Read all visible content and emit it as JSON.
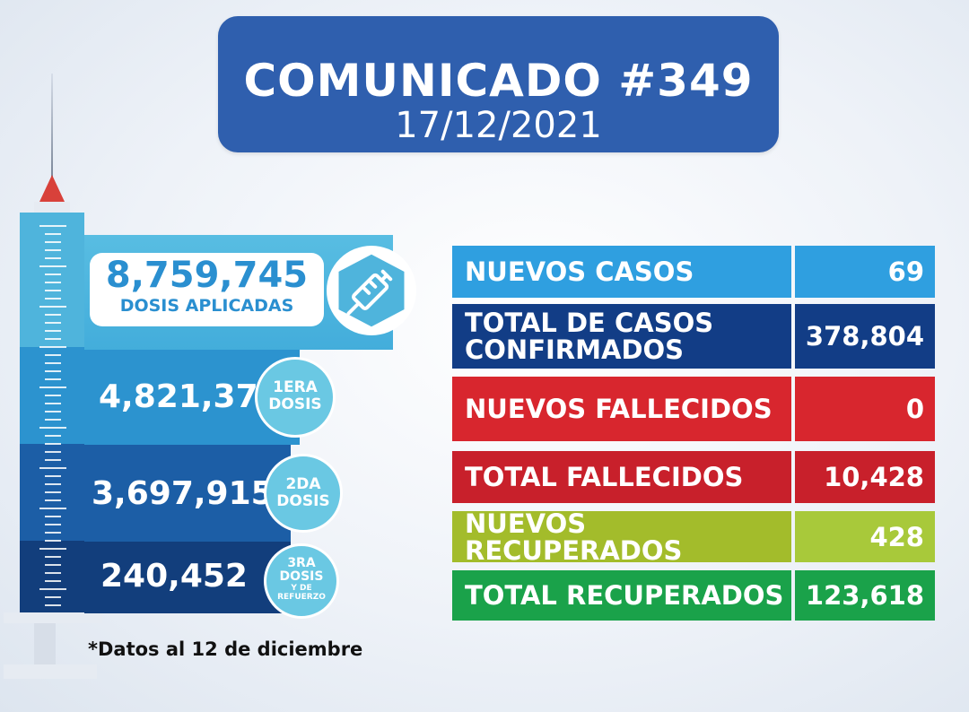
{
  "header": {
    "title": "COMUNICADO #349",
    "date": "17/12/2021"
  },
  "vaccination": {
    "total": {
      "value": "8,759,745",
      "label": "DOSIS APLICADAS",
      "icon": "syringe-icon"
    },
    "doses": [
      {
        "value": "4,821,378",
        "badge_line1": "1ERA",
        "badge_line2": "DOSIS",
        "badge_line3": ""
      },
      {
        "value": "3,697,915",
        "badge_line1": "2DA",
        "badge_line2": "DOSIS",
        "badge_line3": ""
      },
      {
        "value": "240,452",
        "badge_line1": "3RA",
        "badge_line2": "DOSIS",
        "badge_line3": "Y DE REFUERZO"
      }
    ],
    "footnote": "*Datos al 12 de diciembre"
  },
  "stats": [
    {
      "label": "NUEVOS CASOS",
      "value": "69",
      "color": "#2f9fe0",
      "val_color": "#2f9fe0"
    },
    {
      "label": "TOTAL DE CASOS CONFIRMADOS",
      "value": "378,804",
      "color": "#123d86",
      "val_color": "#123d86"
    },
    {
      "label": "NUEVOS FALLECIDOS",
      "value": "0",
      "color": "#d8262e",
      "val_color": "#d8262e"
    },
    {
      "label": "TOTAL FALLECIDOS",
      "value": "10,428",
      "color": "#c8202b",
      "val_color": "#c8202b"
    },
    {
      "label": "NUEVOS RECUPERADOS",
      "value": "428",
      "color": "#a3bc2b",
      "val_color": "#a8c93a"
    },
    {
      "label": "TOTAL RECUPERADOS",
      "value": "123,618",
      "color": "#1aa24a",
      "val_color": "#1aa24a"
    }
  ]
}
